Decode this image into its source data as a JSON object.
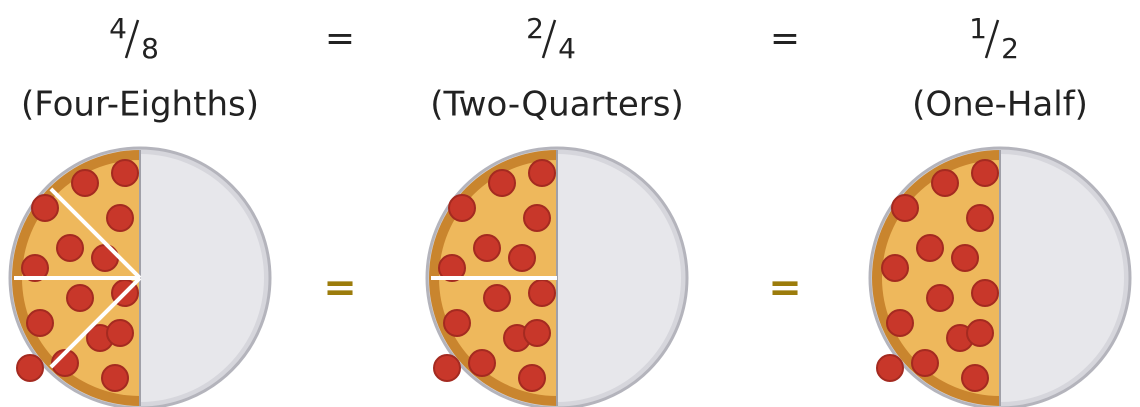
{
  "fractions": [
    {
      "numerator": "4",
      "denominator": "8",
      "name": "(Four-Eighths)"
    },
    {
      "numerator": "2",
      "denominator": "4",
      "name": "(Two-Quarters)"
    },
    {
      "numerator": "1",
      "denominator": "2",
      "name": "(One-Half)"
    }
  ],
  "top_equals": [
    "=",
    "="
  ],
  "middle_equals": [
    "=",
    "="
  ]
}
